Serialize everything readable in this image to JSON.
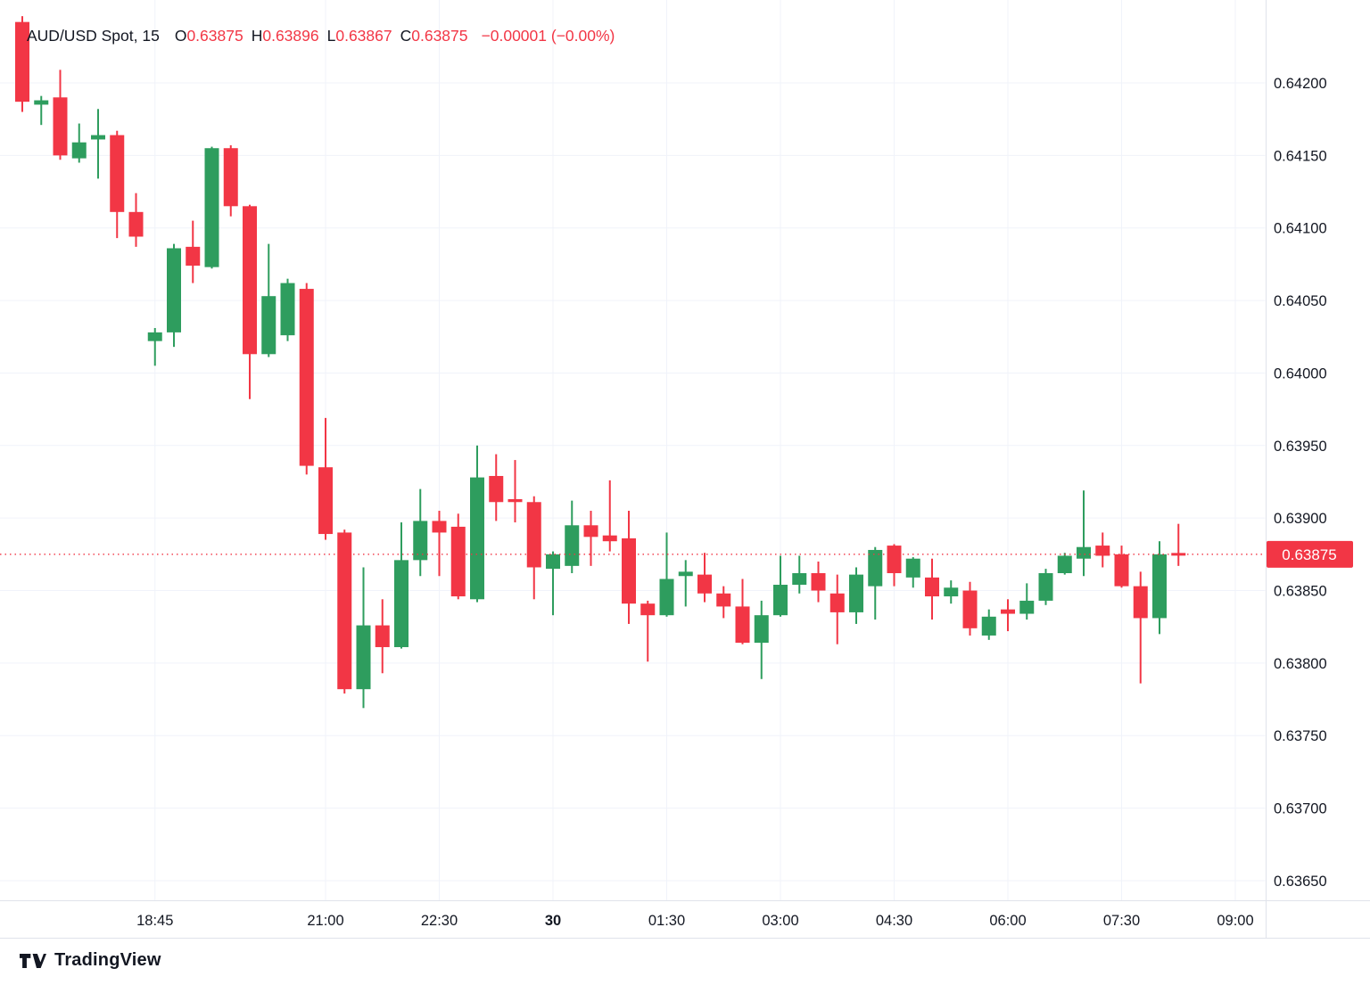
{
  "legend": {
    "symbol": "AUD/USD Spot, 15",
    "o_label": "O",
    "o_value": "0.63875",
    "h_label": "H",
    "h_value": "0.63896",
    "l_label": "L",
    "l_value": "0.63867",
    "c_label": "C",
    "c_value": "0.63875",
    "change": "−0.00001 (−0.00%)"
  },
  "logo": {
    "brand": "TradingView"
  },
  "colors": {
    "up": "#2e9d5e",
    "down": "#f23645",
    "grid": "#f0f3fa",
    "axis_line": "#e0e3eb",
    "text": "#131722",
    "price_line": "#f23645",
    "tag_bg": "#f23645",
    "tag_text": "#ffffff",
    "background": "#ffffff"
  },
  "price_axis": {
    "labels": [
      "0.64200",
      "0.64150",
      "0.64100",
      "0.64050",
      "0.64000",
      "0.63950",
      "0.63900",
      "0.63850",
      "0.63800",
      "0.63750",
      "0.63700",
      "0.63650"
    ],
    "tag": "0.63875"
  },
  "time_axis": {
    "labels": [
      {
        "text": "18:45",
        "i": 7,
        "bold": false
      },
      {
        "text": "21:00",
        "i": 16,
        "bold": false
      },
      {
        "text": "22:30",
        "i": 22,
        "bold": false
      },
      {
        "text": "30",
        "i": 28,
        "bold": true
      },
      {
        "text": "01:30",
        "i": 34,
        "bold": false
      },
      {
        "text": "03:00",
        "i": 40,
        "bold": false
      },
      {
        "text": "04:30",
        "i": 46,
        "bold": false
      },
      {
        "text": "06:00",
        "i": 52,
        "bold": false
      },
      {
        "text": "07:30",
        "i": 58,
        "bold": false
      },
      {
        "text": "09:00",
        "i": 64,
        "bold": false
      }
    ]
  },
  "chart_data": {
    "type": "candlestick",
    "title": "AUD/USD Spot",
    "interval": "15",
    "ylim": [
      0.63625,
      0.6425
    ],
    "price_grid_step": 0.0005,
    "current_price": 0.63875,
    "last_bar": {
      "open": 0.63875,
      "high": 0.63896,
      "low": 0.63867,
      "close": 0.63875,
      "change": "-0.00001",
      "change_pct": "-0.00%"
    },
    "legend_position": "top-left",
    "grid": true,
    "candles": [
      {
        "t": "17:00",
        "o": 0.64242,
        "h": 0.64246,
        "l": 0.6418,
        "c": 0.64187
      },
      {
        "t": "17:15",
        "o": 0.64185,
        "h": 0.64191,
        "l": 0.64171,
        "c": 0.64188
      },
      {
        "t": "17:30",
        "o": 0.6419,
        "h": 0.64209,
        "l": 0.64147,
        "c": 0.6415
      },
      {
        "t": "17:45",
        "o": 0.64148,
        "h": 0.64172,
        "l": 0.64145,
        "c": 0.64159
      },
      {
        "t": "18:00",
        "o": 0.64161,
        "h": 0.64182,
        "l": 0.64134,
        "c": 0.64164
      },
      {
        "t": "18:15",
        "o": 0.64164,
        "h": 0.64167,
        "l": 0.64093,
        "c": 0.64111
      },
      {
        "t": "18:30",
        "o": 0.64111,
        "h": 0.64124,
        "l": 0.64087,
        "c": 0.64094
      },
      {
        "t": "18:45",
        "o": 0.64022,
        "h": 0.64031,
        "l": 0.64005,
        "c": 0.64028
      },
      {
        "t": "19:00",
        "o": 0.64028,
        "h": 0.64089,
        "l": 0.64018,
        "c": 0.64086
      },
      {
        "t": "19:15",
        "o": 0.64087,
        "h": 0.64105,
        "l": 0.64062,
        "c": 0.64074
      },
      {
        "t": "19:30",
        "o": 0.64073,
        "h": 0.64156,
        "l": 0.64072,
        "c": 0.64155
      },
      {
        "t": "19:45",
        "o": 0.64155,
        "h": 0.64157,
        "l": 0.64108,
        "c": 0.64115
      },
      {
        "t": "20:00",
        "o": 0.64115,
        "h": 0.64116,
        "l": 0.63982,
        "c": 0.64013
      },
      {
        "t": "20:15",
        "o": 0.64013,
        "h": 0.64089,
        "l": 0.64011,
        "c": 0.64053
      },
      {
        "t": "20:30",
        "o": 0.64026,
        "h": 0.64065,
        "l": 0.64022,
        "c": 0.64062
      },
      {
        "t": "20:45",
        "o": 0.64058,
        "h": 0.64062,
        "l": 0.6393,
        "c": 0.63936
      },
      {
        "t": "21:00",
        "o": 0.63935,
        "h": 0.63969,
        "l": 0.63885,
        "c": 0.63889
      },
      {
        "t": "21:15",
        "o": 0.6389,
        "h": 0.63892,
        "l": 0.63779,
        "c": 0.63782
      },
      {
        "t": "21:30",
        "o": 0.63782,
        "h": 0.63866,
        "l": 0.63769,
        "c": 0.63826
      },
      {
        "t": "21:45",
        "o": 0.63826,
        "h": 0.63844,
        "l": 0.63793,
        "c": 0.63811
      },
      {
        "t": "22:00",
        "o": 0.63811,
        "h": 0.63897,
        "l": 0.6381,
        "c": 0.63871
      },
      {
        "t": "22:15",
        "o": 0.63871,
        "h": 0.6392,
        "l": 0.6386,
        "c": 0.63898
      },
      {
        "t": "22:30",
        "o": 0.63898,
        "h": 0.63905,
        "l": 0.6386,
        "c": 0.6389
      },
      {
        "t": "22:45",
        "o": 0.63894,
        "h": 0.63903,
        "l": 0.63844,
        "c": 0.63846
      },
      {
        "t": "23:00",
        "o": 0.63844,
        "h": 0.6395,
        "l": 0.63842,
        "c": 0.63928
      },
      {
        "t": "23:15",
        "o": 0.63929,
        "h": 0.63944,
        "l": 0.63898,
        "c": 0.63911
      },
      {
        "t": "23:30",
        "o": 0.63913,
        "h": 0.6394,
        "l": 0.63897,
        "c": 0.63911
      },
      {
        "t": "23:45",
        "o": 0.63911,
        "h": 0.63915,
        "l": 0.63844,
        "c": 0.63866
      },
      {
        "t": "00:00",
        "o": 0.63865,
        "h": 0.63877,
        "l": 0.63833,
        "c": 0.63875
      },
      {
        "t": "00:15",
        "o": 0.63867,
        "h": 0.63912,
        "l": 0.63862,
        "c": 0.63895
      },
      {
        "t": "00:30",
        "o": 0.63895,
        "h": 0.63905,
        "l": 0.63867,
        "c": 0.63887
      },
      {
        "t": "00:45",
        "o": 0.63888,
        "h": 0.63926,
        "l": 0.63877,
        "c": 0.63884
      },
      {
        "t": "01:00",
        "o": 0.63886,
        "h": 0.63905,
        "l": 0.63827,
        "c": 0.63841
      },
      {
        "t": "01:15",
        "o": 0.63841,
        "h": 0.63843,
        "l": 0.63801,
        "c": 0.63833
      },
      {
        "t": "01:30",
        "o": 0.63833,
        "h": 0.6389,
        "l": 0.63832,
        "c": 0.63858
      },
      {
        "t": "01:45",
        "o": 0.6386,
        "h": 0.63871,
        "l": 0.63839,
        "c": 0.63863
      },
      {
        "t": "02:00",
        "o": 0.63861,
        "h": 0.63876,
        "l": 0.63842,
        "c": 0.63848
      },
      {
        "t": "02:15",
        "o": 0.63848,
        "h": 0.63853,
        "l": 0.63831,
        "c": 0.63839
      },
      {
        "t": "02:30",
        "o": 0.63839,
        "h": 0.63858,
        "l": 0.63813,
        "c": 0.63814
      },
      {
        "t": "02:45",
        "o": 0.63814,
        "h": 0.63843,
        "l": 0.63789,
        "c": 0.63833
      },
      {
        "t": "03:00",
        "o": 0.63833,
        "h": 0.63874,
        "l": 0.63832,
        "c": 0.63854
      },
      {
        "t": "03:15",
        "o": 0.63854,
        "h": 0.63874,
        "l": 0.63848,
        "c": 0.63862
      },
      {
        "t": "03:30",
        "o": 0.63862,
        "h": 0.6387,
        "l": 0.63842,
        "c": 0.6385
      },
      {
        "t": "03:45",
        "o": 0.63848,
        "h": 0.63861,
        "l": 0.63813,
        "c": 0.63835
      },
      {
        "t": "04:00",
        "o": 0.63835,
        "h": 0.63866,
        "l": 0.63827,
        "c": 0.63861
      },
      {
        "t": "04:15",
        "o": 0.63853,
        "h": 0.6388,
        "l": 0.6383,
        "c": 0.63878
      },
      {
        "t": "04:30",
        "o": 0.63881,
        "h": 0.63882,
        "l": 0.63853,
        "c": 0.63862
      },
      {
        "t": "04:45",
        "o": 0.63859,
        "h": 0.63873,
        "l": 0.63852,
        "c": 0.63872
      },
      {
        "t": "05:00",
        "o": 0.63859,
        "h": 0.63872,
        "l": 0.6383,
        "c": 0.63846
      },
      {
        "t": "05:15",
        "o": 0.63846,
        "h": 0.63857,
        "l": 0.63841,
        "c": 0.63852
      },
      {
        "t": "05:30",
        "o": 0.6385,
        "h": 0.63856,
        "l": 0.63819,
        "c": 0.63824
      },
      {
        "t": "05:45",
        "o": 0.63819,
        "h": 0.63837,
        "l": 0.63816,
        "c": 0.63832
      },
      {
        "t": "06:00",
        "o": 0.63837,
        "h": 0.63844,
        "l": 0.63822,
        "c": 0.63834
      },
      {
        "t": "06:15",
        "o": 0.63834,
        "h": 0.63855,
        "l": 0.6383,
        "c": 0.63843
      },
      {
        "t": "06:30",
        "o": 0.63843,
        "h": 0.63865,
        "l": 0.6384,
        "c": 0.63862
      },
      {
        "t": "06:45",
        "o": 0.63862,
        "h": 0.63876,
        "l": 0.63861,
        "c": 0.63874
      },
      {
        "t": "07:00",
        "o": 0.63872,
        "h": 0.63919,
        "l": 0.6386,
        "c": 0.6388
      },
      {
        "t": "07:15",
        "o": 0.63881,
        "h": 0.6389,
        "l": 0.63866,
        "c": 0.63874
      },
      {
        "t": "07:30",
        "o": 0.63875,
        "h": 0.63881,
        "l": 0.63852,
        "c": 0.63853
      },
      {
        "t": "07:45",
        "o": 0.63853,
        "h": 0.63863,
        "l": 0.63786,
        "c": 0.63831
      },
      {
        "t": "08:00",
        "o": 0.63831,
        "h": 0.63884,
        "l": 0.6382,
        "c": 0.63875
      },
      {
        "t": "08:15",
        "o": 0.63875,
        "h": 0.63896,
        "l": 0.63867,
        "c": 0.63875
      }
    ]
  }
}
